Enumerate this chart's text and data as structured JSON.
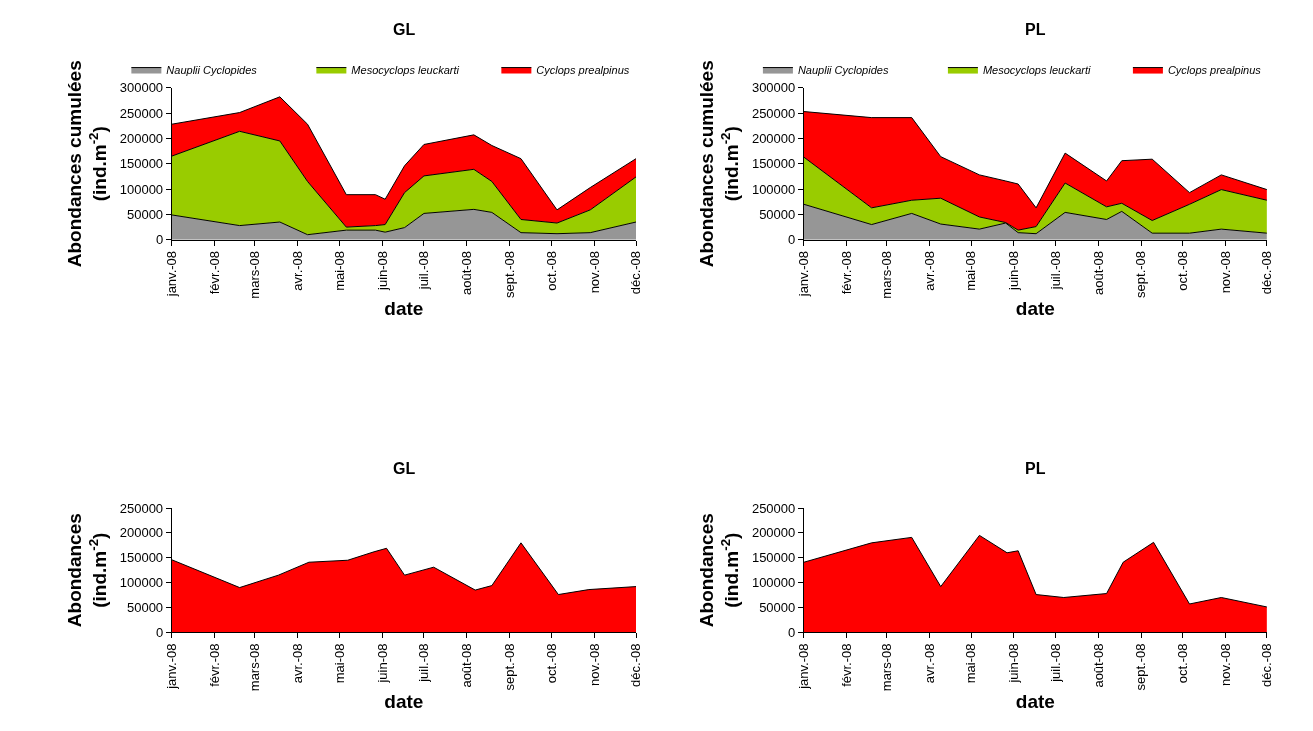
{
  "chart_data": [
    {
      "type": "area",
      "stacked": true,
      "title": "GL",
      "xlabel": "date",
      "ylabel": "Abondances cumulées\n(ind.m$^{-2}$)",
      "legend": "top",
      "x": [
        "2008-01-01",
        "2008-02-19",
        "2008-03-19",
        "2008-04-08",
        "2008-05-06",
        "2008-05-27",
        "2008-06-03",
        "2008-06-17",
        "2008-07-01",
        "2008-08-06",
        "2008-08-19",
        "2008-09-09",
        "2008-10-05",
        "2008-10-29",
        "2008-12-01"
      ],
      "series": [
        {
          "name": "Nauplii Cyclopides",
          "color": "#969696",
          "values": [
            49000,
            28000,
            35000,
            10000,
            19000,
            19000,
            15000,
            24000,
            52000,
            60000,
            54000,
            14000,
            12000,
            14000,
            35000
          ]
        },
        {
          "name": "Mesocyclops leuckarti",
          "color": "#99cc00",
          "values": [
            116000,
            186000,
            160000,
            105000,
            6000,
            9000,
            15000,
            69000,
            74000,
            79000,
            61000,
            26000,
            21000,
            45000,
            89000
          ]
        },
        {
          "name": "Cyclops prealpinus",
          "color": "#ff0000",
          "values": [
            63000,
            37000,
            87000,
            113000,
            64000,
            61000,
            50000,
            53000,
            62000,
            68000,
            71000,
            120000,
            26000,
            44000,
            36000
          ]
        }
      ],
      "xlim": [
        "2008-01-01",
        "2008-12-01"
      ],
      "xticks": [
        {
          "value": "2008-01-01",
          "label": "janv.-08"
        },
        {
          "value": "2008-02-01",
          "label": "févr.-08"
        },
        {
          "value": "2008-03-01",
          "label": "mars-08"
        },
        {
          "value": "2008-04-01",
          "label": "avr.-08"
        },
        {
          "value": "2008-05-01",
          "label": "mai-08"
        },
        {
          "value": "2008-06-01",
          "label": "juin-08"
        },
        {
          "value": "2008-07-01",
          "label": "juil.-08"
        },
        {
          "value": "2008-08-01",
          "label": "août-08"
        },
        {
          "value": "2008-09-01",
          "label": "sept.-08"
        },
        {
          "value": "2008-10-01",
          "label": "oct.-08"
        },
        {
          "value": "2008-11-01",
          "label": "nov.-08"
        },
        {
          "value": "2008-12-01",
          "label": "déc.-08"
        }
      ],
      "ylim": [
        0,
        300000
      ],
      "yticks": [
        0,
        50000,
        100000,
        150000,
        200000,
        250000,
        300000
      ]
    },
    {
      "type": "area",
      "stacked": true,
      "title": "PL",
      "xlabel": "date",
      "ylabel": "Abondances cumulées\n(ind.m$^{-2}$)",
      "legend": "top",
      "x": [
        "2008-01-01",
        "2008-02-19",
        "2008-03-19",
        "2008-04-09",
        "2008-05-07",
        "2008-05-26",
        "2008-06-04",
        "2008-06-17",
        "2008-07-08",
        "2008-08-07",
        "2008-08-18",
        "2008-09-09",
        "2008-10-06",
        "2008-10-29",
        "2008-12-01"
      ],
      "series": [
        {
          "name": "Nauplii Cyclopides",
          "color": "#969696",
          "values": [
            70000,
            30000,
            52000,
            31000,
            21000,
            33000,
            14000,
            12000,
            54000,
            40000,
            56000,
            13000,
            13000,
            21000,
            13000
          ]
        },
        {
          "name": "Mesocyclops leuckarti",
          "color": "#99cc00",
          "values": [
            93000,
            33000,
            26000,
            51000,
            24000,
            1000,
            5000,
            14000,
            58000,
            25000,
            16000,
            25000,
            57000,
            78000,
            65000
          ]
        },
        {
          "name": "Cyclops prealpinus",
          "color": "#ff0000",
          "values": [
            90000,
            178000,
            163000,
            82000,
            83000,
            82000,
            91000,
            37000,
            59000,
            51000,
            84000,
            121000,
            23000,
            29000,
            21000
          ]
        }
      ],
      "xlim": [
        "2008-01-01",
        "2008-12-01"
      ],
      "xticks": [
        {
          "value": "2008-01-01",
          "label": "janv.-08"
        },
        {
          "value": "2008-02-01",
          "label": "févr.-08"
        },
        {
          "value": "2008-03-01",
          "label": "mars-08"
        },
        {
          "value": "2008-04-01",
          "label": "avr.-08"
        },
        {
          "value": "2008-05-01",
          "label": "mai-08"
        },
        {
          "value": "2008-06-01",
          "label": "juin-08"
        },
        {
          "value": "2008-07-01",
          "label": "juil.-08"
        },
        {
          "value": "2008-08-01",
          "label": "août-08"
        },
        {
          "value": "2008-09-01",
          "label": "sept.-08"
        },
        {
          "value": "2008-10-01",
          "label": "oct.-08"
        },
        {
          "value": "2008-11-01",
          "label": "nov.-08"
        },
        {
          "value": "2008-12-01",
          "label": "déc.-08"
        }
      ],
      "ylim": [
        0,
        300000
      ],
      "yticks": [
        0,
        50000,
        100000,
        150000,
        200000,
        250000,
        300000
      ]
    },
    {
      "type": "area",
      "title": "GL",
      "xlabel": "date",
      "ylabel": "Abondances\n(ind.m$^{-2}$)",
      "x": [
        "2008-01-01",
        "2008-02-19",
        "2008-03-18",
        "2008-04-09",
        "2008-05-07",
        "2008-05-26",
        "2008-06-04",
        "2008-06-17",
        "2008-07-08",
        "2008-08-07",
        "2008-08-19",
        "2008-09-09",
        "2008-10-06",
        "2008-10-28",
        "2008-12-01"
      ],
      "series": [
        {
          "color": "#ff0000",
          "values": [
            146000,
            90000,
            115000,
            141000,
            145000,
            162000,
            169000,
            115000,
            131000,
            85000,
            94000,
            180000,
            76000,
            86000,
            92000
          ]
        }
      ],
      "xlim": [
        "2008-01-01",
        "2008-12-01"
      ],
      "xticks": [
        {
          "value": "2008-01-01",
          "label": "janv.-08"
        },
        {
          "value": "2008-02-01",
          "label": "févr.-08"
        },
        {
          "value": "2008-03-01",
          "label": "mars-08"
        },
        {
          "value": "2008-04-01",
          "label": "avr.-08"
        },
        {
          "value": "2008-05-01",
          "label": "mai-08"
        },
        {
          "value": "2008-06-01",
          "label": "juin-08"
        },
        {
          "value": "2008-07-01",
          "label": "juil.-08"
        },
        {
          "value": "2008-08-01",
          "label": "août-08"
        },
        {
          "value": "2008-09-01",
          "label": "sept.-08"
        },
        {
          "value": "2008-10-01",
          "label": "oct.-08"
        },
        {
          "value": "2008-11-01",
          "label": "nov.-08"
        },
        {
          "value": "2008-12-01",
          "label": "déc.-08"
        }
      ],
      "ylim": [
        0,
        250000
      ],
      "yticks": [
        0,
        50000,
        100000,
        150000,
        200000,
        250000
      ]
    },
    {
      "type": "area",
      "title": "PL",
      "xlabel": "date",
      "ylabel": "Abondances\n(ind.m$^{-2}$)",
      "x": [
        "2008-01-01",
        "2008-02-19",
        "2008-03-19",
        "2008-04-09",
        "2008-05-07",
        "2008-05-27",
        "2008-06-04",
        "2008-06-17",
        "2008-07-07",
        "2008-08-07",
        "2008-08-19",
        "2008-09-10",
        "2008-10-06",
        "2008-10-29",
        "2008-12-01"
      ],
      "series": [
        {
          "color": "#ff0000",
          "values": [
            141000,
            180000,
            191000,
            92000,
            195000,
            160000,
            164000,
            76000,
            70000,
            78000,
            141000,
            181000,
            57000,
            70000,
            51000
          ]
        }
      ],
      "xlim": [
        "2008-01-01",
        "2008-12-01"
      ],
      "xticks": [
        {
          "value": "2008-01-01",
          "label": "janv.-08"
        },
        {
          "value": "2008-02-01",
          "label": "févr.-08"
        },
        {
          "value": "2008-03-01",
          "label": "mars-08"
        },
        {
          "value": "2008-04-01",
          "label": "avr.-08"
        },
        {
          "value": "2008-05-01",
          "label": "mai-08"
        },
        {
          "value": "2008-06-01",
          "label": "juin-08"
        },
        {
          "value": "2008-07-01",
          "label": "juil.-08"
        },
        {
          "value": "2008-08-01",
          "label": "août-08"
        },
        {
          "value": "2008-09-01",
          "label": "sept.-08"
        },
        {
          "value": "2008-10-01",
          "label": "oct.-08"
        },
        {
          "value": "2008-11-01",
          "label": "nov.-08"
        },
        {
          "value": "2008-12-01",
          "label": "déc.-08"
        }
      ],
      "ylim": [
        0,
        250000
      ],
      "yticks": [
        0,
        50000,
        100000,
        150000,
        200000,
        250000
      ]
    }
  ]
}
